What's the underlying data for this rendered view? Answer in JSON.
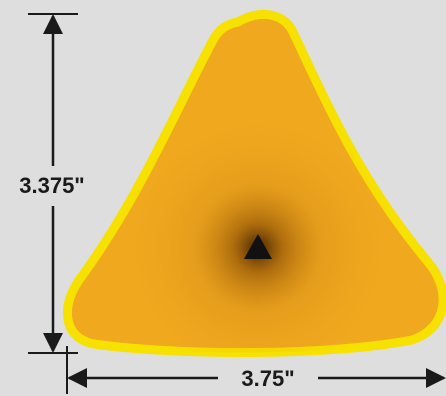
{
  "dimensions": {
    "height_label": "3.375\"",
    "width_label": "3.75\""
  },
  "colors": {
    "background": "#dedede",
    "outline": "#f6e100",
    "body": "#f0a81f",
    "center_glow": "#5a2e00",
    "triangle_mark": "#111111",
    "dimension_lines": "#1a1a1a"
  }
}
